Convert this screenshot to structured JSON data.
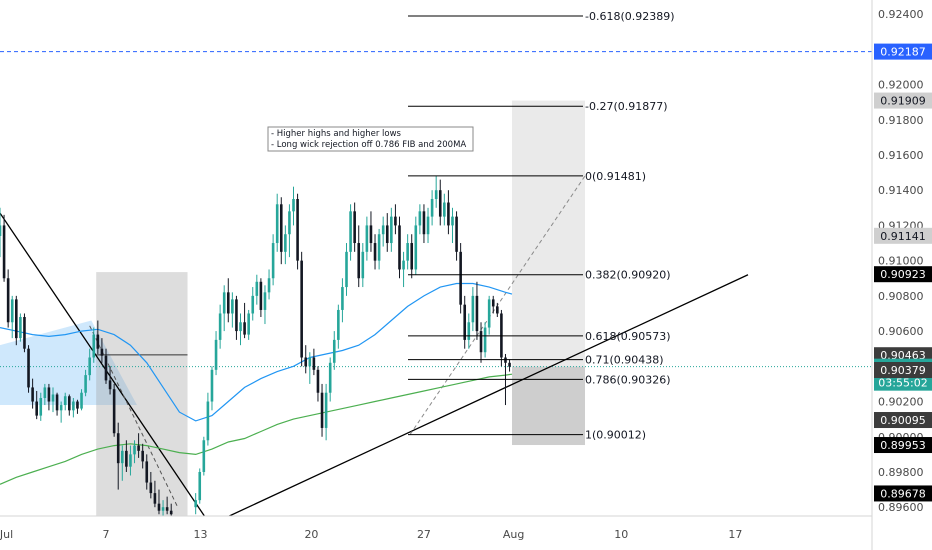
{
  "chart_data": {
    "type": "candlestick",
    "y_axis": {
      "ylim": [
        0.8955,
        0.9248
      ],
      "ticks": [
        "0.92400",
        "0.92200",
        "0.92000",
        "0.91800",
        "0.91600",
        "0.91400",
        "0.91200",
        "0.91000",
        "0.90800",
        "0.90600",
        "0.90400",
        "0.90200",
        "0.90000",
        "0.89800",
        "0.89600"
      ],
      "tick_values": [
        0.924,
        0.922,
        0.92,
        0.918,
        0.916,
        0.914,
        0.912,
        0.91,
        0.908,
        0.906,
        0.904,
        0.902,
        0.9,
        0.898,
        0.896
      ]
    },
    "x_axis": {
      "range_days": [
        0,
        31.4
      ],
      "tick_labels": [
        "Jul",
        "7",
        "13",
        "20",
        "27",
        "Aug",
        "10",
        "17"
      ],
      "tick_days": [
        0.4,
        6.5,
        12.3,
        19.1,
        26.0,
        31.5,
        38.1,
        45.1
      ]
    },
    "price_badges": [
      {
        "value": "0.92187",
        "kind": "blue"
      },
      {
        "value": "0.91909",
        "kind": "grey"
      },
      {
        "value": "0.91141",
        "kind": "grey"
      },
      {
        "value": "0.90923",
        "kind": "black"
      },
      {
        "value": "0.90463",
        "kind": "dark"
      },
      {
        "value": "0.90398",
        "kind": "teal"
      },
      {
        "value": "03:55:02",
        "kind": "teal"
      },
      {
        "value": "0.90379",
        "kind": "dark"
      },
      {
        "value": "0.90095",
        "kind": "dark"
      },
      {
        "value": "0.89953",
        "kind": "black"
      },
      {
        "value": "0.89678",
        "kind": "black"
      }
    ],
    "fib_levels": [
      {
        "label": "-0.618(0.92389)",
        "value": 0.92389
      },
      {
        "label": "-0.27(0.91877)",
        "value": 0.91877
      },
      {
        "label": "0(0.91481)",
        "value": 0.91481
      },
      {
        "label": "0.382(0.90920)",
        "value": 0.9092
      },
      {
        "label": "0.618(0.90573)",
        "value": 0.90573
      },
      {
        "label": "0.71(0.90438)",
        "value": 0.90438
      },
      {
        "label": "0.786(0.90326)",
        "value": 0.90326
      },
      {
        "label": "1(0.90012)",
        "value": 0.90012
      }
    ],
    "annotation": [
      "- Higher highs and higher lows",
      "- Long wick rejection off 0.786 FIB and 200MA"
    ],
    "horizontal_line": 0.92187,
    "current_price": 0.90398,
    "colors": {
      "up": "#26a69a",
      "down": "#131722",
      "ma_fast": "#2196f3",
      "ma_slow": "#4caf50",
      "fib": "#000000",
      "blue_dash": "#2962ff",
      "box": "#9e9e9e",
      "blue_fill": "#bbdefb"
    },
    "candles": [
      {
        "d": 0.0,
        "o": 0.9114,
        "h": 0.913,
        "l": 0.9102,
        "c": 0.912
      },
      {
        "d": 0.25,
        "o": 0.912,
        "h": 0.9126,
        "l": 0.9088,
        "c": 0.909
      },
      {
        "d": 0.5,
        "o": 0.909,
        "h": 0.9095,
        "l": 0.9062,
        "c": 0.9065
      },
      {
        "d": 0.75,
        "o": 0.9065,
        "h": 0.908,
        "l": 0.9056,
        "c": 0.9078
      },
      {
        "d": 1.0,
        "o": 0.9078,
        "h": 0.908,
        "l": 0.9052,
        "c": 0.9056
      },
      {
        "d": 1.25,
        "o": 0.9056,
        "h": 0.907,
        "l": 0.9054,
        "c": 0.9068
      },
      {
        "d": 1.5,
        "o": 0.9068,
        "h": 0.907,
        "l": 0.9048,
        "c": 0.905
      },
      {
        "d": 1.75,
        "o": 0.905,
        "h": 0.9052,
        "l": 0.9025,
        "c": 0.9028
      },
      {
        "d": 2.0,
        "o": 0.9028,
        "h": 0.9033,
        "l": 0.9016,
        "c": 0.902
      },
      {
        "d": 2.25,
        "o": 0.902,
        "h": 0.9026,
        "l": 0.901,
        "c": 0.9012
      },
      {
        "d": 2.5,
        "o": 0.9012,
        "h": 0.9025,
        "l": 0.9009,
        "c": 0.9022
      },
      {
        "d": 2.75,
        "o": 0.9022,
        "h": 0.903,
        "l": 0.9018,
        "c": 0.9028
      },
      {
        "d": 3.0,
        "o": 0.9028,
        "h": 0.903,
        "l": 0.9015,
        "c": 0.902
      },
      {
        "d": 3.25,
        "o": 0.902,
        "h": 0.9028,
        "l": 0.9014,
        "c": 0.9024
      },
      {
        "d": 3.5,
        "o": 0.9024,
        "h": 0.9025,
        "l": 0.9012,
        "c": 0.9015
      },
      {
        "d": 3.75,
        "o": 0.9015,
        "h": 0.902,
        "l": 0.9008,
        "c": 0.9018
      },
      {
        "d": 4.0,
        "o": 0.9018,
        "h": 0.9025,
        "l": 0.9015,
        "c": 0.9023
      },
      {
        "d": 4.25,
        "o": 0.9023,
        "h": 0.9024,
        "l": 0.9012,
        "c": 0.9015
      },
      {
        "d": 4.5,
        "o": 0.9015,
        "h": 0.9022,
        "l": 0.9011,
        "c": 0.902
      },
      {
        "d": 4.75,
        "o": 0.902,
        "h": 0.9021,
        "l": 0.9013,
        "c": 0.9016
      },
      {
        "d": 5.0,
        "o": 0.9016,
        "h": 0.9027,
        "l": 0.9015,
        "c": 0.9025
      },
      {
        "d": 5.25,
        "o": 0.9025,
        "h": 0.9038,
        "l": 0.9023,
        "c": 0.9035
      },
      {
        "d": 5.5,
        "o": 0.9035,
        "h": 0.905,
        "l": 0.9032,
        "c": 0.9045
      },
      {
        "d": 5.75,
        "o": 0.9045,
        "h": 0.9062,
        "l": 0.9042,
        "c": 0.9058
      },
      {
        "d": 6.0,
        "o": 0.9058,
        "h": 0.9066,
        "l": 0.9047,
        "c": 0.905
      },
      {
        "d": 6.25,
        "o": 0.905,
        "h": 0.9056,
        "l": 0.9042,
        "c": 0.9046
      },
      {
        "d": 6.5,
        "o": 0.9046,
        "h": 0.905,
        "l": 0.903,
        "c": 0.9032
      },
      {
        "d": 6.75,
        "o": 0.9032,
        "h": 0.904,
        "l": 0.9024,
        "c": 0.9027
      },
      {
        "d": 7.0,
        "o": 0.9027,
        "h": 0.903,
        "l": 0.9,
        "c": 0.9002
      },
      {
        "d": 7.25,
        "o": 0.9002,
        "h": 0.9008,
        "l": 0.897,
        "c": 0.8985
      },
      {
        "d": 7.5,
        "o": 0.8985,
        "h": 0.8995,
        "l": 0.8975,
        "c": 0.8992
      },
      {
        "d": 7.75,
        "o": 0.8992,
        "h": 0.8998,
        "l": 0.898,
        "c": 0.8983
      },
      {
        "d": 8.0,
        "o": 0.8983,
        "h": 0.8995,
        "l": 0.8978,
        "c": 0.899
      },
      {
        "d": 8.25,
        "o": 0.899,
        "h": 0.8998,
        "l": 0.8985,
        "c": 0.8995
      },
      {
        "d": 8.5,
        "o": 0.8995,
        "h": 0.9002,
        "l": 0.8988,
        "c": 0.8992
      },
      {
        "d": 8.75,
        "o": 0.8992,
        "h": 0.8996,
        "l": 0.8982,
        "c": 0.8986
      },
      {
        "d": 9.0,
        "o": 0.8986,
        "h": 0.899,
        "l": 0.897,
        "c": 0.8974
      },
      {
        "d": 9.25,
        "o": 0.8974,
        "h": 0.898,
        "l": 0.8965,
        "c": 0.8968
      },
      {
        "d": 9.5,
        "o": 0.8968,
        "h": 0.8975,
        "l": 0.896,
        "c": 0.8962
      },
      {
        "d": 9.75,
        "o": 0.8962,
        "h": 0.897,
        "l": 0.8956,
        "c": 0.8958
      },
      {
        "d": 10.0,
        "o": 0.8958,
        "h": 0.8964,
        "l": 0.8954,
        "c": 0.896
      },
      {
        "d": 10.25,
        "o": 0.896,
        "h": 0.8966,
        "l": 0.8956,
        "c": 0.8958
      },
      {
        "d": 10.5,
        "o": 0.8958,
        "h": 0.8962,
        "l": 0.8952,
        "c": 0.8956
      },
      {
        "d": 12.0,
        "o": 0.896,
        "h": 0.8968,
        "l": 0.8956,
        "c": 0.8964
      },
      {
        "d": 12.25,
        "o": 0.8964,
        "h": 0.8982,
        "l": 0.8962,
        "c": 0.898
      },
      {
        "d": 12.5,
        "o": 0.898,
        "h": 0.9,
        "l": 0.8978,
        "c": 0.8998
      },
      {
        "d": 12.75,
        "o": 0.8998,
        "h": 0.9025,
        "l": 0.8995,
        "c": 0.902
      },
      {
        "d": 13.0,
        "o": 0.902,
        "h": 0.904,
        "l": 0.9015,
        "c": 0.9038
      },
      {
        "d": 13.25,
        "o": 0.9038,
        "h": 0.906,
        "l": 0.9035,
        "c": 0.9055
      },
      {
        "d": 13.5,
        "o": 0.9055,
        "h": 0.9075,
        "l": 0.905,
        "c": 0.907
      },
      {
        "d": 13.75,
        "o": 0.907,
        "h": 0.9086,
        "l": 0.906,
        "c": 0.9082
      },
      {
        "d": 14.0,
        "o": 0.9082,
        "h": 0.909,
        "l": 0.9065,
        "c": 0.907
      },
      {
        "d": 14.25,
        "o": 0.907,
        "h": 0.9082,
        "l": 0.9062,
        "c": 0.9078
      },
      {
        "d": 14.5,
        "o": 0.9078,
        "h": 0.908,
        "l": 0.9055,
        "c": 0.906
      },
      {
        "d": 14.75,
        "o": 0.906,
        "h": 0.907,
        "l": 0.9052,
        "c": 0.9065
      },
      {
        "d": 15.0,
        "o": 0.9065,
        "h": 0.9076,
        "l": 0.9056,
        "c": 0.9058
      },
      {
        "d": 15.25,
        "o": 0.9058,
        "h": 0.9072,
        "l": 0.9055,
        "c": 0.907
      },
      {
        "d": 15.5,
        "o": 0.907,
        "h": 0.9085,
        "l": 0.9066,
        "c": 0.908
      },
      {
        "d": 15.75,
        "o": 0.908,
        "h": 0.9092,
        "l": 0.9075,
        "c": 0.9088
      },
      {
        "d": 16.0,
        "o": 0.9088,
        "h": 0.909,
        "l": 0.9068,
        "c": 0.9072
      },
      {
        "d": 16.25,
        "o": 0.9072,
        "h": 0.9086,
        "l": 0.9064,
        "c": 0.9082
      },
      {
        "d": 16.5,
        "o": 0.9082,
        "h": 0.9095,
        "l": 0.9078,
        "c": 0.909
      },
      {
        "d": 16.75,
        "o": 0.909,
        "h": 0.9115,
        "l": 0.9086,
        "c": 0.911
      },
      {
        "d": 17.0,
        "o": 0.911,
        "h": 0.9138,
        "l": 0.9105,
        "c": 0.9132
      },
      {
        "d": 17.25,
        "o": 0.9132,
        "h": 0.9136,
        "l": 0.9098,
        "c": 0.9105
      },
      {
        "d": 17.5,
        "o": 0.9105,
        "h": 0.912,
        "l": 0.9098,
        "c": 0.9115
      },
      {
        "d": 17.75,
        "o": 0.9115,
        "h": 0.9132,
        "l": 0.9102,
        "c": 0.9128
      },
      {
        "d": 18.0,
        "o": 0.9128,
        "h": 0.9142,
        "l": 0.912,
        "c": 0.9135
      },
      {
        "d": 18.25,
        "o": 0.9135,
        "h": 0.9138,
        "l": 0.9095,
        "c": 0.91
      },
      {
        "d": 18.5,
        "o": 0.91,
        "h": 0.9105,
        "l": 0.904,
        "c": 0.9045
      },
      {
        "d": 18.75,
        "o": 0.9045,
        "h": 0.9052,
        "l": 0.9036,
        "c": 0.904
      },
      {
        "d": 19.0,
        "o": 0.904,
        "h": 0.9048,
        "l": 0.903,
        "c": 0.9045
      },
      {
        "d": 19.25,
        "o": 0.9045,
        "h": 0.905,
        "l": 0.9035,
        "c": 0.9038
      },
      {
        "d": 19.5,
        "o": 0.9038,
        "h": 0.904,
        "l": 0.902,
        "c": 0.9025
      },
      {
        "d": 19.75,
        "o": 0.9025,
        "h": 0.903,
        "l": 0.9,
        "c": 0.9005
      },
      {
        "d": 20.0,
        "o": 0.9005,
        "h": 0.903,
        "l": 0.8998,
        "c": 0.9025
      },
      {
        "d": 20.25,
        "o": 0.9025,
        "h": 0.9045,
        "l": 0.902,
        "c": 0.9042
      },
      {
        "d": 20.5,
        "o": 0.9042,
        "h": 0.906,
        "l": 0.9038,
        "c": 0.9055
      },
      {
        "d": 20.75,
        "o": 0.9055,
        "h": 0.9075,
        "l": 0.905,
        "c": 0.9072
      },
      {
        "d": 21.0,
        "o": 0.9072,
        "h": 0.909,
        "l": 0.9065,
        "c": 0.9085
      },
      {
        "d": 21.25,
        "o": 0.9085,
        "h": 0.911,
        "l": 0.908,
        "c": 0.9105
      },
      {
        "d": 21.5,
        "o": 0.9105,
        "h": 0.9132,
        "l": 0.91,
        "c": 0.9128
      },
      {
        "d": 21.75,
        "o": 0.9128,
        "h": 0.9133,
        "l": 0.9105,
        "c": 0.911
      },
      {
        "d": 22.0,
        "o": 0.911,
        "h": 0.912,
        "l": 0.9085,
        "c": 0.909
      },
      {
        "d": 22.25,
        "o": 0.909,
        "h": 0.911,
        "l": 0.9085,
        "c": 0.9105
      },
      {
        "d": 22.5,
        "o": 0.9105,
        "h": 0.9125,
        "l": 0.91,
        "c": 0.912
      },
      {
        "d": 22.75,
        "o": 0.912,
        "h": 0.9128,
        "l": 0.9105,
        "c": 0.911
      },
      {
        "d": 23.0,
        "o": 0.911,
        "h": 0.9115,
        "l": 0.9095,
        "c": 0.91
      },
      {
        "d": 23.25,
        "o": 0.91,
        "h": 0.9118,
        "l": 0.9095,
        "c": 0.9115
      },
      {
        "d": 23.5,
        "o": 0.9115,
        "h": 0.9125,
        "l": 0.9108,
        "c": 0.912
      },
      {
        "d": 23.75,
        "o": 0.912,
        "h": 0.9127,
        "l": 0.9105,
        "c": 0.911
      },
      {
        "d": 24.0,
        "o": 0.911,
        "h": 0.913,
        "l": 0.9105,
        "c": 0.9125
      },
      {
        "d": 24.25,
        "o": 0.9125,
        "h": 0.9132,
        "l": 0.9115,
        "c": 0.912
      },
      {
        "d": 24.5,
        "o": 0.912,
        "h": 0.9125,
        "l": 0.909,
        "c": 0.9095
      },
      {
        "d": 24.75,
        "o": 0.9095,
        "h": 0.9105,
        "l": 0.9085,
        "c": 0.91
      },
      {
        "d": 25.0,
        "o": 0.91,
        "h": 0.9115,
        "l": 0.9095,
        "c": 0.911
      },
      {
        "d": 25.25,
        "o": 0.911,
        "h": 0.9115,
        "l": 0.909,
        "c": 0.9095
      },
      {
        "d": 25.5,
        "o": 0.9095,
        "h": 0.9125,
        "l": 0.9092,
        "c": 0.912
      },
      {
        "d": 25.75,
        "o": 0.912,
        "h": 0.9132,
        "l": 0.9115,
        "c": 0.9128
      },
      {
        "d": 26.0,
        "o": 0.9128,
        "h": 0.9132,
        "l": 0.911,
        "c": 0.9115
      },
      {
        "d": 26.25,
        "o": 0.9115,
        "h": 0.913,
        "l": 0.911,
        "c": 0.9125
      },
      {
        "d": 26.5,
        "o": 0.9125,
        "h": 0.914,
        "l": 0.912,
        "c": 0.9135
      },
      {
        "d": 26.75,
        "o": 0.9135,
        "h": 0.9148,
        "l": 0.913,
        "c": 0.914
      },
      {
        "d": 27.0,
        "o": 0.914,
        "h": 0.9146,
        "l": 0.912,
        "c": 0.9125
      },
      {
        "d": 27.25,
        "o": 0.9125,
        "h": 0.9138,
        "l": 0.912,
        "c": 0.9133
      },
      {
        "d": 27.5,
        "o": 0.9133,
        "h": 0.914,
        "l": 0.9115,
        "c": 0.912
      },
      {
        "d": 27.75,
        "o": 0.912,
        "h": 0.913,
        "l": 0.911,
        "c": 0.9125
      },
      {
        "d": 28.0,
        "o": 0.9125,
        "h": 0.9128,
        "l": 0.91,
        "c": 0.9105
      },
      {
        "d": 28.25,
        "o": 0.9105,
        "h": 0.911,
        "l": 0.907,
        "c": 0.9075
      },
      {
        "d": 28.5,
        "o": 0.9075,
        "h": 0.908,
        "l": 0.905,
        "c": 0.9055
      },
      {
        "d": 28.75,
        "o": 0.9055,
        "h": 0.907,
        "l": 0.905,
        "c": 0.9065
      },
      {
        "d": 29.0,
        "o": 0.9065,
        "h": 0.9085,
        "l": 0.906,
        "c": 0.908
      },
      {
        "d": 29.25,
        "o": 0.908,
        "h": 0.9088,
        "l": 0.9055,
        "c": 0.906
      },
      {
        "d": 29.5,
        "o": 0.906,
        "h": 0.9065,
        "l": 0.9042,
        "c": 0.9048
      },
      {
        "d": 29.75,
        "o": 0.9048,
        "h": 0.9065,
        "l": 0.9045,
        "c": 0.9062
      },
      {
        "d": 30.0,
        "o": 0.9062,
        "h": 0.908,
        "l": 0.9058,
        "c": 0.9078
      },
      {
        "d": 30.25,
        "o": 0.9078,
        "h": 0.908,
        "l": 0.907,
        "c": 0.9074
      },
      {
        "d": 30.5,
        "o": 0.9074,
        "h": 0.9076,
        "l": 0.9068,
        "c": 0.907
      },
      {
        "d": 30.75,
        "o": 0.907,
        "h": 0.9072,
        "l": 0.904,
        "c": 0.9045
      },
      {
        "d": 31.0,
        "o": 0.9045,
        "h": 0.9047,
        "l": 0.9018,
        "c": 0.9042
      },
      {
        "d": 31.25,
        "o": 0.9042,
        "h": 0.9044,
        "l": 0.9037,
        "c": 0.90398
      }
    ],
    "ma_fast": {
      "days": [
        0,
        1,
        2,
        3,
        4,
        5,
        6,
        7,
        8,
        9,
        10,
        11,
        12,
        13,
        14,
        15,
        16,
        17,
        18,
        19,
        20,
        21,
        22,
        23,
        24,
        25,
        26,
        27,
        28,
        29,
        30,
        31,
        31.4
      ],
      "values": [
        0.9062,
        0.906,
        0.9058,
        0.9057,
        0.9058,
        0.906,
        0.9061,
        0.9058,
        0.9052,
        0.9042,
        0.9028,
        0.9014,
        0.9009,
        0.9012,
        0.902,
        0.9028,
        0.9033,
        0.9037,
        0.904,
        0.9045,
        0.9047,
        0.9049,
        0.9052,
        0.9058,
        0.9066,
        0.9074,
        0.908,
        0.9085,
        0.9087,
        0.9087,
        0.9085,
        0.9082,
        0.9081
      ]
    },
    "ma_slow": {
      "days": [
        0,
        1,
        2,
        3,
        4,
        5,
        6,
        7,
        8,
        9,
        10,
        11,
        12,
        13,
        14,
        15,
        16,
        17,
        18,
        19,
        20,
        21,
        22,
        23,
        24,
        25,
        26,
        27,
        28,
        29,
        30,
        31,
        31.4
      ],
      "values": [
        0.8973,
        0.8977,
        0.898,
        0.8983,
        0.8986,
        0.899,
        0.8993,
        0.8995,
        0.8996,
        0.8995,
        0.8993,
        0.8991,
        0.899,
        0.8993,
        0.8997,
        0.8999,
        0.9003,
        0.9007,
        0.901,
        0.9012,
        0.9014,
        0.9016,
        0.9018,
        0.902,
        0.9022,
        0.9024,
        0.9026,
        0.9028,
        0.903,
        0.9032,
        0.9034,
        0.9035,
        0.90355
      ]
    }
  }
}
